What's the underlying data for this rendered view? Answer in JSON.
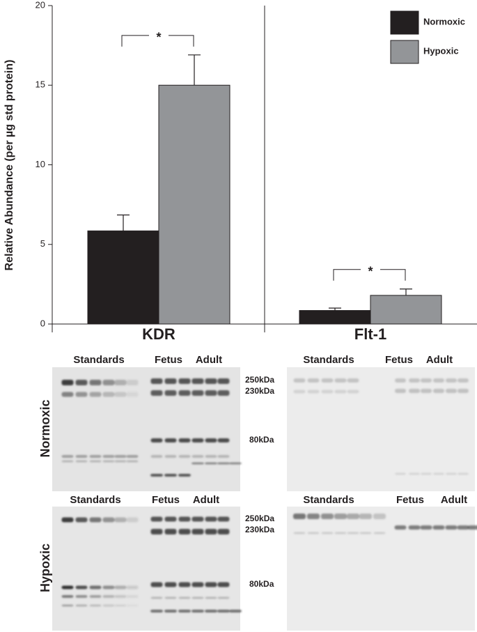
{
  "chart_data": {
    "type": "bar",
    "ylabel": "Relative Abundance (per µg std protein)",
    "categories": [
      "KDR",
      "Flt-1"
    ],
    "series": [
      {
        "name": "Normoxic",
        "color": "#231f20",
        "values": [
          5.85,
          0.85
        ],
        "errors": [
          1.0,
          0.15
        ]
      },
      {
        "name": "Hypoxic",
        "color": "#939598",
        "values": [
          15.0,
          1.8
        ],
        "errors": [
          1.9,
          0.4
        ]
      }
    ],
    "annotations": [
      "*",
      "*"
    ],
    "ylim": [
      0,
      20
    ],
    "yticks": [
      0,
      5,
      10,
      15,
      20
    ],
    "legend": "top-right"
  },
  "blots": {
    "row_labels": [
      "Normoxic",
      "Hypoxic"
    ],
    "lane_labels": [
      [
        "Standards",
        "Fetus",
        "Adult"
      ],
      [
        "Standards",
        "Fetus",
        "Adult"
      ],
      [
        "Standards",
        "Fetus",
        "Adult"
      ],
      [
        "Standards",
        "Fetus",
        "Adult"
      ]
    ],
    "size_labels": [
      [
        "250kDa",
        "230kDa",
        "80kDa"
      ],
      [
        "250kDa",
        "230kDa",
        "80kDa"
      ]
    ]
  }
}
